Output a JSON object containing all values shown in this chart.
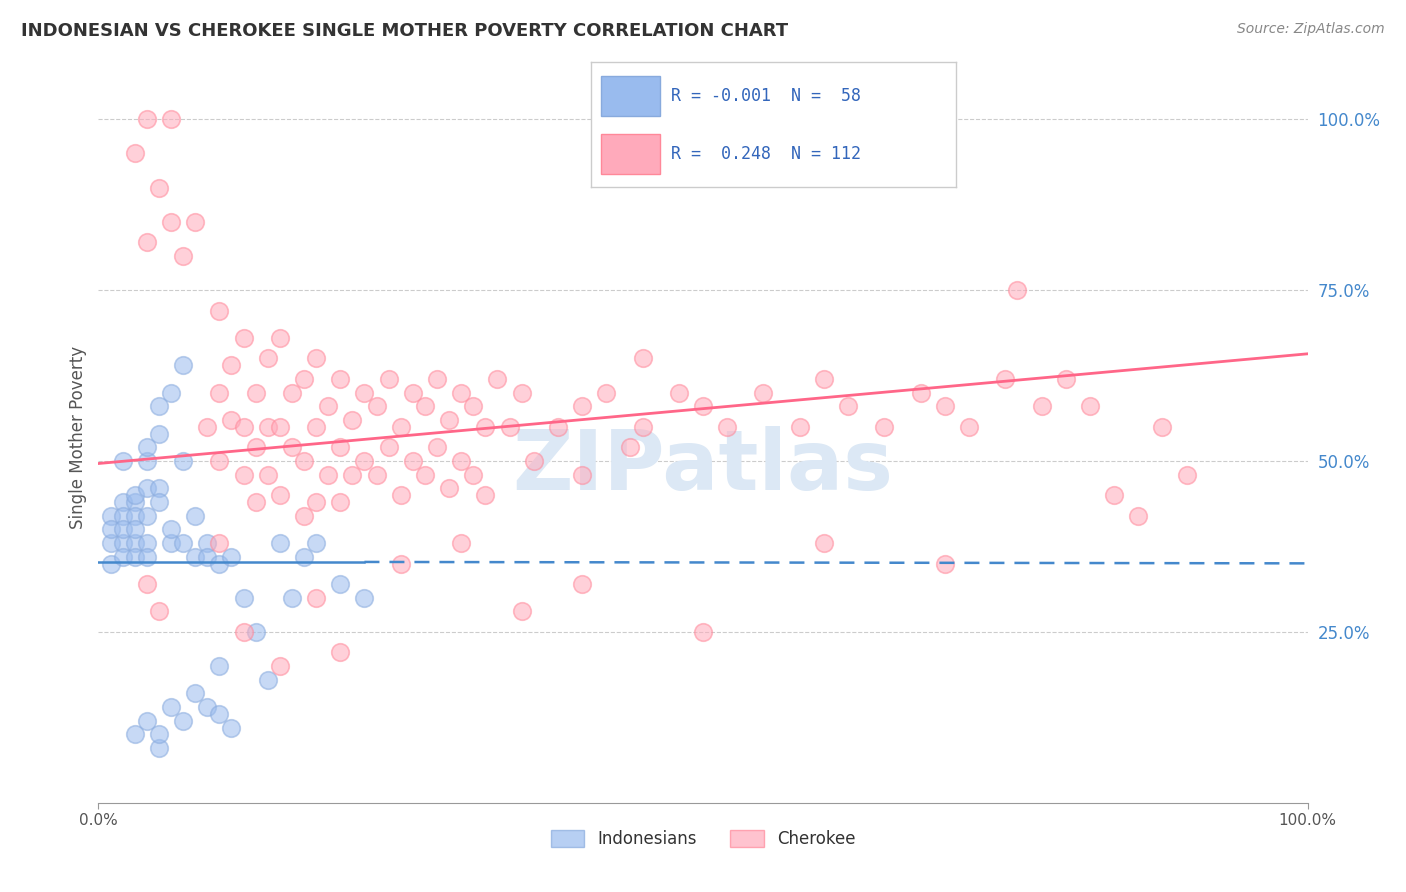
{
  "title": "INDONESIAN VS CHEROKEE SINGLE MOTHER POVERTY CORRELATION CHART",
  "source": "Source: ZipAtlas.com",
  "ylabel": "Single Mother Poverty",
  "indonesian_color": "#99BBEE",
  "cherokee_color": "#FFAABB",
  "indonesian_edge_color": "#88AADD",
  "cherokee_edge_color": "#FF8899",
  "indonesian_line_color": "#4488CC",
  "cherokee_line_color": "#FF6688",
  "background_color": "#ffffff",
  "watermark": "ZIPatlas",
  "indonesian_R": -0.001,
  "cherokee_R": 0.248,
  "ytick_vals": [
    0.25,
    0.5,
    0.75,
    1.0
  ],
  "ytick_labels": [
    "25.0%",
    "50.0%",
    "75.0%",
    "100.0%"
  ],
  "indonesian_points": [
    [
      0.01,
      0.38
    ],
    [
      0.01,
      0.42
    ],
    [
      0.01,
      0.4
    ],
    [
      0.01,
      0.35
    ],
    [
      0.02,
      0.44
    ],
    [
      0.02,
      0.38
    ],
    [
      0.02,
      0.36
    ],
    [
      0.02,
      0.42
    ],
    [
      0.02,
      0.5
    ],
    [
      0.02,
      0.4
    ],
    [
      0.03,
      0.44
    ],
    [
      0.03,
      0.38
    ],
    [
      0.03,
      0.42
    ],
    [
      0.03,
      0.36
    ],
    [
      0.03,
      0.4
    ],
    [
      0.03,
      0.45
    ],
    [
      0.04,
      0.38
    ],
    [
      0.04,
      0.42
    ],
    [
      0.04,
      0.36
    ],
    [
      0.04,
      0.46
    ],
    [
      0.04,
      0.5
    ],
    [
      0.04,
      0.52
    ],
    [
      0.05,
      0.46
    ],
    [
      0.05,
      0.54
    ],
    [
      0.05,
      0.58
    ],
    [
      0.05,
      0.44
    ],
    [
      0.06,
      0.6
    ],
    [
      0.06,
      0.38
    ],
    [
      0.06,
      0.4
    ],
    [
      0.07,
      0.64
    ],
    [
      0.07,
      0.38
    ],
    [
      0.07,
      0.5
    ],
    [
      0.08,
      0.36
    ],
    [
      0.08,
      0.42
    ],
    [
      0.09,
      0.38
    ],
    [
      0.09,
      0.36
    ],
    [
      0.1,
      0.35
    ],
    [
      0.1,
      0.2
    ],
    [
      0.11,
      0.36
    ],
    [
      0.12,
      0.3
    ],
    [
      0.13,
      0.25
    ],
    [
      0.14,
      0.18
    ],
    [
      0.15,
      0.38
    ],
    [
      0.16,
      0.3
    ],
    [
      0.17,
      0.36
    ],
    [
      0.18,
      0.38
    ],
    [
      0.2,
      0.32
    ],
    [
      0.22,
      0.3
    ],
    [
      0.03,
      0.1
    ],
    [
      0.04,
      0.12
    ],
    [
      0.05,
      0.08
    ],
    [
      0.05,
      0.1
    ],
    [
      0.06,
      0.14
    ],
    [
      0.07,
      0.12
    ],
    [
      0.08,
      0.16
    ],
    [
      0.09,
      0.14
    ],
    [
      0.1,
      0.13
    ],
    [
      0.11,
      0.11
    ]
  ],
  "cherokee_points": [
    [
      0.03,
      0.95
    ],
    [
      0.04,
      1.0
    ],
    [
      0.05,
      0.9
    ],
    [
      0.06,
      0.85
    ],
    [
      0.06,
      1.0
    ],
    [
      0.07,
      0.8
    ],
    [
      0.08,
      0.85
    ],
    [
      0.04,
      0.82
    ],
    [
      0.09,
      0.55
    ],
    [
      0.1,
      0.72
    ],
    [
      0.1,
      0.6
    ],
    [
      0.1,
      0.5
    ],
    [
      0.11,
      0.64
    ],
    [
      0.11,
      0.56
    ],
    [
      0.12,
      0.68
    ],
    [
      0.12,
      0.55
    ],
    [
      0.12,
      0.48
    ],
    [
      0.13,
      0.6
    ],
    [
      0.13,
      0.52
    ],
    [
      0.13,
      0.44
    ],
    [
      0.14,
      0.65
    ],
    [
      0.14,
      0.55
    ],
    [
      0.14,
      0.48
    ],
    [
      0.15,
      0.68
    ],
    [
      0.15,
      0.55
    ],
    [
      0.15,
      0.45
    ],
    [
      0.16,
      0.6
    ],
    [
      0.16,
      0.52
    ],
    [
      0.17,
      0.62
    ],
    [
      0.17,
      0.5
    ],
    [
      0.17,
      0.42
    ],
    [
      0.18,
      0.65
    ],
    [
      0.18,
      0.55
    ],
    [
      0.18,
      0.44
    ],
    [
      0.19,
      0.58
    ],
    [
      0.19,
      0.48
    ],
    [
      0.2,
      0.62
    ],
    [
      0.2,
      0.52
    ],
    [
      0.2,
      0.44
    ],
    [
      0.21,
      0.56
    ],
    [
      0.21,
      0.48
    ],
    [
      0.22,
      0.6
    ],
    [
      0.22,
      0.5
    ],
    [
      0.23,
      0.58
    ],
    [
      0.23,
      0.48
    ],
    [
      0.24,
      0.62
    ],
    [
      0.24,
      0.52
    ],
    [
      0.25,
      0.55
    ],
    [
      0.25,
      0.45
    ],
    [
      0.26,
      0.6
    ],
    [
      0.26,
      0.5
    ],
    [
      0.27,
      0.58
    ],
    [
      0.27,
      0.48
    ],
    [
      0.28,
      0.62
    ],
    [
      0.28,
      0.52
    ],
    [
      0.29,
      0.56
    ],
    [
      0.29,
      0.46
    ],
    [
      0.3,
      0.6
    ],
    [
      0.3,
      0.5
    ],
    [
      0.31,
      0.58
    ],
    [
      0.31,
      0.48
    ],
    [
      0.32,
      0.55
    ],
    [
      0.32,
      0.45
    ],
    [
      0.33,
      0.62
    ],
    [
      0.34,
      0.55
    ],
    [
      0.35,
      0.6
    ],
    [
      0.36,
      0.5
    ],
    [
      0.38,
      0.55
    ],
    [
      0.4,
      0.58
    ],
    [
      0.4,
      0.48
    ],
    [
      0.42,
      0.6
    ],
    [
      0.44,
      0.52
    ],
    [
      0.45,
      0.65
    ],
    [
      0.45,
      0.55
    ],
    [
      0.48,
      0.6
    ],
    [
      0.5,
      0.58
    ],
    [
      0.52,
      0.55
    ],
    [
      0.55,
      0.6
    ],
    [
      0.58,
      0.55
    ],
    [
      0.6,
      0.62
    ],
    [
      0.62,
      0.58
    ],
    [
      0.65,
      0.55
    ],
    [
      0.68,
      0.6
    ],
    [
      0.7,
      0.58
    ],
    [
      0.72,
      0.55
    ],
    [
      0.75,
      0.62
    ],
    [
      0.76,
      0.75
    ],
    [
      0.78,
      0.58
    ],
    [
      0.8,
      0.62
    ],
    [
      0.82,
      0.58
    ],
    [
      0.84,
      0.45
    ],
    [
      0.86,
      0.42
    ],
    [
      0.88,
      0.55
    ],
    [
      0.9,
      0.48
    ],
    [
      0.04,
      0.32
    ],
    [
      0.05,
      0.28
    ],
    [
      0.1,
      0.38
    ],
    [
      0.12,
      0.25
    ],
    [
      0.15,
      0.2
    ],
    [
      0.18,
      0.3
    ],
    [
      0.2,
      0.22
    ],
    [
      0.25,
      0.35
    ],
    [
      0.3,
      0.38
    ],
    [
      0.35,
      0.28
    ],
    [
      0.4,
      0.32
    ],
    [
      0.5,
      0.25
    ],
    [
      0.6,
      0.38
    ],
    [
      0.7,
      0.35
    ]
  ]
}
